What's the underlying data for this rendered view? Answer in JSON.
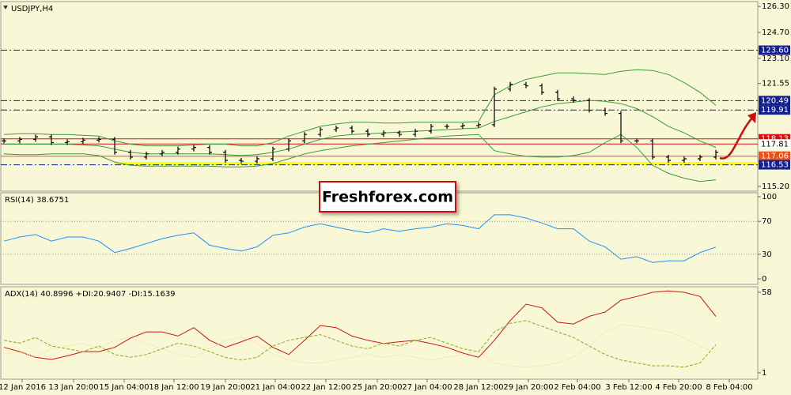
{
  "chart_data": [
    {
      "type": "price",
      "title": "USDJPY,H4",
      "watermark": "Freshforex.com",
      "xlim": [
        -0.25,
        47.65
      ],
      "ylim": [
        114.9,
        126.6
      ],
      "yticks": [
        {
          "value": 126.3,
          "label": "126.30"
        },
        {
          "value": 124.7,
          "label": "124.70"
        },
        {
          "value": 123.1,
          "label": "123.10"
        },
        {
          "value": 121.55,
          "label": "121.55"
        },
        {
          "value": 115.2,
          "label": "115.20"
        }
      ],
      "color": "#000000",
      "close": [
        118.0,
        118.1,
        118.25,
        117.9,
        117.95,
        118.05,
        118.1,
        117.3,
        117.0,
        117.2,
        117.3,
        117.5,
        117.6,
        117.3,
        116.8,
        116.75,
        116.9,
        117.5,
        118.0,
        118.4,
        118.7,
        118.8,
        118.6,
        118.4,
        118.5,
        118.4,
        118.6,
        118.9,
        118.9,
        118.95,
        119.0,
        121.2,
        121.5,
        121.4,
        121.0,
        120.6,
        120.5,
        119.9,
        119.7,
        118.0,
        118.0,
        117.0,
        116.8,
        116.9,
        117.0,
        117.3
      ],
      "bands": [
        {
          "color": "#3a9a3a",
          "values": [
            118.4,
            118.45,
            118.45,
            118.4,
            118.4,
            118.35,
            118.3,
            118.0,
            117.8,
            117.7,
            117.7,
            117.7,
            117.75,
            117.8,
            117.8,
            117.7,
            117.7,
            117.9,
            118.3,
            118.6,
            118.9,
            119.05,
            119.15,
            119.15,
            119.1,
            119.1,
            119.15,
            119.15,
            119.15,
            119.15,
            119.2,
            120.85,
            121.4,
            121.8,
            122.0,
            122.2,
            122.2,
            122.15,
            122.1,
            122.3,
            122.4,
            122.35,
            122.1,
            121.6,
            121.0,
            120.2
          ]
        },
        {
          "color": "#3a9a3a",
          "values": [
            117.8,
            117.8,
            117.8,
            117.8,
            117.8,
            117.75,
            117.7,
            117.5,
            117.3,
            117.2,
            117.2,
            117.2,
            117.2,
            117.2,
            117.15,
            117.1,
            117.15,
            117.3,
            117.5,
            117.8,
            118.1,
            118.3,
            118.4,
            118.45,
            118.5,
            118.55,
            118.6,
            118.65,
            118.7,
            118.75,
            118.8,
            119.2,
            119.5,
            119.8,
            120.1,
            120.3,
            120.4,
            120.5,
            120.45,
            120.3,
            120.0,
            119.5,
            118.9,
            118.5,
            118.0,
            117.6
          ]
        },
        {
          "color": "#3a9a3a",
          "values": [
            117.2,
            117.15,
            117.15,
            117.2,
            117.2,
            117.2,
            117.1,
            116.7,
            116.5,
            116.45,
            116.45,
            116.45,
            116.45,
            116.45,
            116.4,
            116.4,
            116.45,
            116.6,
            116.9,
            117.2,
            117.4,
            117.55,
            117.7,
            117.8,
            117.9,
            118.0,
            118.1,
            118.2,
            118.3,
            118.35,
            118.4,
            117.4,
            117.2,
            117.05,
            117.0,
            117.0,
            117.1,
            117.3,
            117.9,
            118.4,
            117.6,
            116.5,
            116.0,
            115.7,
            115.5,
            115.6
          ]
        }
      ],
      "levels": [
        {
          "value": 123.6,
          "label": "123.60",
          "color": "#14208c",
          "style": "dashdot"
        },
        {
          "value": 120.49,
          "label": "120.49",
          "color": "#14208c",
          "style": "dashdot"
        },
        {
          "value": 119.91,
          "label": "119.91",
          "color": "#14208c",
          "style": "dashdot"
        },
        {
          "value": 118.13,
          "label": "118.13",
          "color": "#d81010",
          "style": "solid"
        },
        {
          "value": 117.81,
          "label": "117.81",
          "color": "#d81010",
          "style": "solid"
        },
        {
          "value": 117.06,
          "label": "117.06",
          "color": "#e8501c",
          "style": "solid"
        },
        {
          "value": 116.6,
          "color": "#ffff00",
          "style": "band"
        },
        {
          "value": 116.53,
          "label": "116.53",
          "color": "#14208c",
          "style": "dashdot"
        }
      ]
    },
    {
      "type": "line",
      "title": "RSI(14) 38.6751",
      "xlim": [
        -0.25,
        47.65
      ],
      "ylim": [
        -6.7,
        104.8
      ],
      "yticks": [
        0,
        30,
        70,
        100
      ],
      "levels": [
        30,
        70
      ],
      "series": [
        {
          "color": "#1e90ff",
          "dash": "solid",
          "values": [
            46,
            51,
            54,
            46,
            51,
            51,
            46,
            32,
            37,
            43,
            49,
            53,
            56,
            41,
            37,
            34,
            39,
            53,
            56,
            63,
            67,
            63,
            59,
            56,
            61,
            58,
            61,
            63,
            67,
            65,
            61,
            78,
            78,
            74,
            68,
            61,
            61,
            46,
            39,
            24,
            27,
            20,
            22,
            22,
            32,
            38.7
          ]
        }
      ]
    },
    {
      "type": "line",
      "title": "ADX(14) 40.8996 +DI:20.9407 -DI:15.1639",
      "xlim": [
        -0.25,
        47.65
      ],
      "ylim": [
        -3.5,
        61.9
      ],
      "yticks": [
        1,
        58
      ],
      "xticks": [
        {
          "value": 1.15,
          "label": "12 Jan 2016"
        },
        {
          "value": 4.4,
          "label": "13 Jan 20:00"
        },
        {
          "value": 7.6,
          "label": "15 Jan 04:00"
        },
        {
          "value": 10.75,
          "label": "18 Jan 12:00"
        },
        {
          "value": 14,
          "label": "19 Jan 20:00"
        },
        {
          "value": 17.15,
          "label": "21 Jan 04:00"
        },
        {
          "value": 20.35,
          "label": "22 Jan 12:00"
        },
        {
          "value": 23.6,
          "label": "25 Jan 20:00"
        },
        {
          "value": 26.75,
          "label": "27 Jan 04:00"
        },
        {
          "value": 30,
          "label": "28 Jan 12:00"
        },
        {
          "value": 33.15,
          "label": "29 Jan 20:00"
        },
        {
          "value": 36.25,
          "label": "2 Feb 04:00"
        },
        {
          "value": 39.5,
          "label": "3 Feb 12:00"
        },
        {
          "value": 42.65,
          "label": "4 Feb 20:00"
        },
        {
          "value": 45.85,
          "label": "8 Feb 04:00"
        }
      ],
      "series": [
        {
          "color": "#d01010",
          "dash": "solid",
          "values": [
            19,
            16,
            12,
            10.5,
            13,
            16,
            16,
            19,
            25.6,
            30,
            30,
            27,
            33,
            24,
            19,
            23,
            27,
            19,
            14,
            24,
            34.5,
            33,
            27,
            24,
            21.7,
            23,
            24,
            21.7,
            19,
            15,
            12,
            24,
            38,
            49.6,
            47,
            36.8,
            35.6,
            41,
            44,
            52.4,
            55,
            58,
            59,
            58,
            55,
            40.9
          ]
        },
        {
          "color": "#8aaa20",
          "dash": "dashed",
          "values": [
            24,
            22,
            26,
            20,
            18,
            16,
            20,
            14,
            12,
            14,
            18,
            22,
            20,
            16,
            12,
            10,
            12,
            20,
            24,
            26,
            28,
            24,
            20,
            18,
            22,
            20,
            24,
            26,
            22,
            18,
            16,
            30,
            36,
            38,
            34,
            30,
            26,
            20,
            14,
            10,
            8,
            6,
            6,
            5,
            8,
            20.9
          ]
        },
        {
          "color": "#e8c890",
          "dash": "dotted",
          "values": [
            14,
            16,
            12,
            18,
            20,
            22,
            18,
            24,
            26,
            22,
            18,
            14,
            12,
            18,
            24,
            26,
            22,
            14,
            10,
            8,
            8,
            10,
            12,
            14,
            12,
            14,
            12,
            10,
            12,
            14,
            16,
            8,
            6,
            5,
            6,
            8,
            12,
            20,
            30,
            35,
            34,
            32,
            30,
            26,
            20,
            15.2
          ]
        }
      ]
    }
  ]
}
